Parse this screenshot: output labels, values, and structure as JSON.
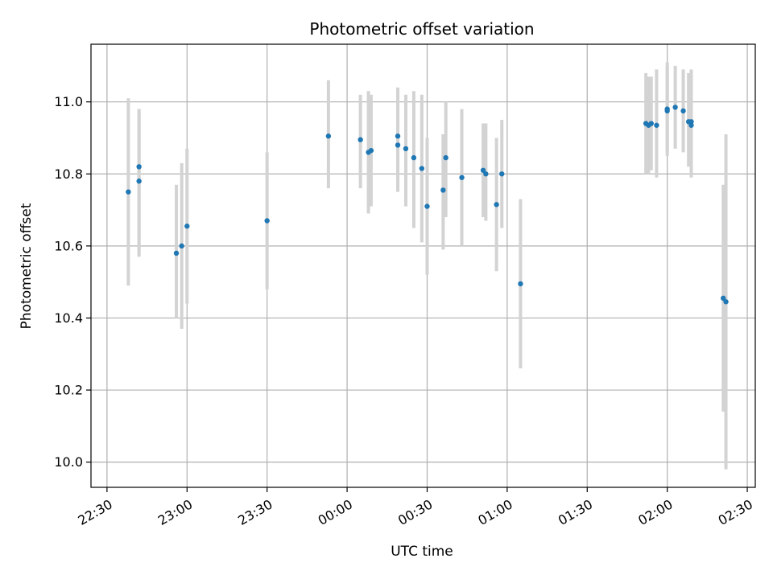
{
  "chart_data": {
    "type": "scatter",
    "title": "Photometric offset variation",
    "xlabel": "UTC time",
    "ylabel": "Photometric offset",
    "xlim": [
      "22:24",
      "02:33"
    ],
    "ylim": [
      9.93,
      11.16
    ],
    "x_ticks": [
      "22:30",
      "23:00",
      "23:30",
      "00:00",
      "00:30",
      "01:00",
      "01:30",
      "02:00",
      "02:30"
    ],
    "y_ticks": [
      "10.0",
      "10.2",
      "10.4",
      "10.6",
      "10.8",
      "11.0"
    ],
    "grid": true,
    "colors": {
      "points": "#1f77b4",
      "errorbars": "#d3d3d3",
      "grid": "#b0b0b0"
    },
    "points": [
      {
        "t": "22:38",
        "y": 10.75,
        "lo": 10.49,
        "hi": 11.01
      },
      {
        "t": "22:42",
        "y": 10.82,
        "lo": 10.58,
        "hi": 10.98
      },
      {
        "t": "22:42",
        "y": 10.78,
        "lo": 10.57,
        "hi": 10.98
      },
      {
        "t": "22:56",
        "y": 10.58,
        "lo": 10.4,
        "hi": 10.77
      },
      {
        "t": "22:58",
        "y": 10.6,
        "lo": 10.37,
        "hi": 10.83
      },
      {
        "t": "23:00",
        "y": 10.655,
        "lo": 10.44,
        "hi": 10.87
      },
      {
        "t": "23:30",
        "y": 10.67,
        "lo": 10.48,
        "hi": 10.86
      },
      {
        "t": "23:53",
        "y": 10.905,
        "lo": 10.76,
        "hi": 11.06
      },
      {
        "t": "00:05",
        "y": 10.895,
        "lo": 10.76,
        "hi": 11.02
      },
      {
        "t": "00:08",
        "y": 10.86,
        "lo": 10.69,
        "hi": 11.03
      },
      {
        "t": "00:09",
        "y": 10.865,
        "lo": 10.71,
        "hi": 11.02
      },
      {
        "t": "00:19",
        "y": 10.88,
        "lo": 10.75,
        "hi": 11.02
      },
      {
        "t": "00:19",
        "y": 10.905,
        "lo": 10.77,
        "hi": 11.04
      },
      {
        "t": "00:22",
        "y": 10.87,
        "lo": 10.71,
        "hi": 11.02
      },
      {
        "t": "00:25",
        "y": 10.845,
        "lo": 10.65,
        "hi": 11.03
      },
      {
        "t": "00:28",
        "y": 10.815,
        "lo": 10.61,
        "hi": 11.02
      },
      {
        "t": "00:30",
        "y": 10.71,
        "lo": 10.52,
        "hi": 10.9
      },
      {
        "t": "00:36",
        "y": 10.755,
        "lo": 10.59,
        "hi": 10.91
      },
      {
        "t": "00:37",
        "y": 10.845,
        "lo": 10.68,
        "hi": 11.0
      },
      {
        "t": "00:43",
        "y": 10.79,
        "lo": 10.6,
        "hi": 10.98
      },
      {
        "t": "00:51",
        "y": 10.81,
        "lo": 10.68,
        "hi": 10.94
      },
      {
        "t": "00:52",
        "y": 10.8,
        "lo": 10.67,
        "hi": 10.94
      },
      {
        "t": "00:56",
        "y": 10.715,
        "lo": 10.53,
        "hi": 10.9
      },
      {
        "t": "00:58",
        "y": 10.8,
        "lo": 10.65,
        "hi": 10.95
      },
      {
        "t": "01:05",
        "y": 10.495,
        "lo": 10.26,
        "hi": 10.73
      },
      {
        "t": "01:52",
        "y": 10.94,
        "lo": 10.8,
        "hi": 11.08
      },
      {
        "t": "01:53",
        "y": 10.935,
        "lo": 10.8,
        "hi": 11.07
      },
      {
        "t": "01:54",
        "y": 10.94,
        "lo": 10.81,
        "hi": 11.07
      },
      {
        "t": "01:56",
        "y": 10.935,
        "lo": 10.79,
        "hi": 11.09
      },
      {
        "t": "02:00",
        "y": 10.975,
        "lo": 10.85,
        "hi": 11.11
      },
      {
        "t": "02:00",
        "y": 10.98,
        "lo": 10.86,
        "hi": 11.1
      },
      {
        "t": "02:03",
        "y": 10.985,
        "lo": 10.87,
        "hi": 11.1
      },
      {
        "t": "02:06",
        "y": 10.975,
        "lo": 10.86,
        "hi": 11.09
      },
      {
        "t": "02:08",
        "y": 10.945,
        "lo": 10.82,
        "hi": 11.08
      },
      {
        "t": "02:09",
        "y": 10.945,
        "lo": 10.8,
        "hi": 11.08
      },
      {
        "t": "02:09",
        "y": 10.935,
        "lo": 10.79,
        "hi": 11.09
      },
      {
        "t": "02:21",
        "y": 10.455,
        "lo": 10.14,
        "hi": 10.77
      },
      {
        "t": "02:22",
        "y": 10.445,
        "lo": 9.98,
        "hi": 10.91
      }
    ]
  }
}
